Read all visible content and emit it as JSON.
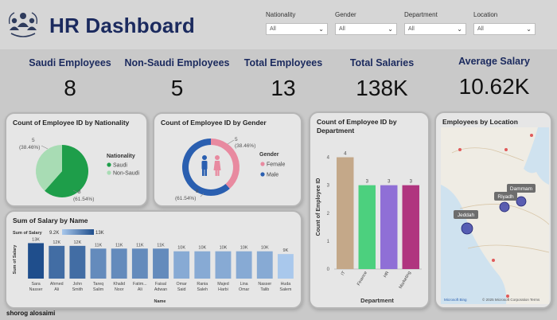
{
  "header": {
    "title": "HR Dashboard",
    "logo_icon": "people-group-icon"
  },
  "filters": [
    {
      "label": "Nationality",
      "value": "All"
    },
    {
      "label": "Gender",
      "value": "All"
    },
    {
      "label": "Department",
      "value": "All"
    },
    {
      "label": "Location",
      "value": "All"
    }
  ],
  "kpis": [
    {
      "label": "Saudi Employees",
      "value": "8"
    },
    {
      "label": "Non-Saudi Employees",
      "value": "5"
    },
    {
      "label": "Total Employees",
      "value": "13"
    },
    {
      "label": "Total Salaries",
      "value": "138K"
    },
    {
      "label": "Average Salary",
      "value": "10.62K"
    }
  ],
  "nationality_chart": {
    "title": "Count of Employee ID by Nationality",
    "legend_title": "Nationality",
    "label_non_saudi": "5",
    "pct_non_saudi": "(38.46%)",
    "label_saudi": "8",
    "pct_saudi": "(61.54%)"
  },
  "gender_chart": {
    "title": "Count of Employee ID by Gender",
    "legend_title": "Gender",
    "label_female": "5",
    "pct_female": "(38.46%)",
    "label_male": "8",
    "pct_male": "(61.54%)",
    "center_icon": "male-female-icon"
  },
  "department_chart": {
    "title": "Count of Employee ID by Department"
  },
  "location_map": {
    "title": "Employees by Location",
    "cities": [
      "Dammam",
      "Riyadh",
      "Jeddah"
    ],
    "attribution": "© 2025 Microsoft Corporation Terms",
    "brand": "Microsoft Bing"
  },
  "salary_chart": {
    "title": "Sum of Salary by Name",
    "gradient_label": "Sum of Salary",
    "gradient_min": "9.2K",
    "gradient_max": "13K"
  },
  "footer": {
    "author": "shorog alosaimi"
  },
  "colors": {
    "title": "#1b2a5e",
    "saudi": "#1e9e4a",
    "non_saudi": "#a8dcb4",
    "female": "#e88aa0",
    "male": "#2a5fb0",
    "salary_dark": "#1f4e8c",
    "salary_light": "#a9c8ec"
  },
  "chart_data": [
    {
      "type": "pie",
      "categories": [
        "Saudi",
        "Non-Saudi"
      ],
      "values": [
        8,
        5
      ],
      "title": "Count of Employee ID by Nationality",
      "legend": "right"
    },
    {
      "type": "pie",
      "categories": [
        "Female",
        "Male"
      ],
      "values": [
        5,
        8
      ],
      "title": "Count of Employee ID by Gender",
      "legend": "right"
    },
    {
      "type": "bar",
      "categories": [
        "IT",
        "Finance",
        "HR",
        "Marketing"
      ],
      "values": [
        4,
        3,
        3,
        3
      ],
      "colors": [
        "#c4a889",
        "#4cd07e",
        "#8f6fd6",
        "#b0357f"
      ],
      "title": "Count of Employee ID by Department",
      "xlabel": "Department",
      "ylabel": "Count of Employee ID",
      "yticks": [
        0,
        1,
        2,
        3,
        4
      ],
      "ylim": [
        0,
        4.5
      ]
    },
    {
      "type": "bar",
      "categories": [
        "Sara Nasser",
        "Ahmed Ali",
        "John Smith",
        "Tareq Salim",
        "Khalid Noor",
        "Fatim... Ali",
        "Faisal Adwan",
        "Omar Said",
        "Rania Saleh",
        "Majed Harbi",
        "Lina Omar",
        "Nasser Talib",
        "Huda Salem"
      ],
      "values": [
        13,
        12,
        12,
        11,
        11,
        11,
        11,
        10,
        10,
        10,
        10,
        10,
        9
      ],
      "value_labels": [
        "13K",
        "12K",
        "12K",
        "11K",
        "11K",
        "11K",
        "11K",
        "10K",
        "10K",
        "10K",
        "10K",
        "10K",
        "9K"
      ],
      "title": "Sum of Salary by Name",
      "xlabel": "Name",
      "ylabel": "Sum of Salary",
      "ylim": [
        0,
        14
      ]
    }
  ]
}
